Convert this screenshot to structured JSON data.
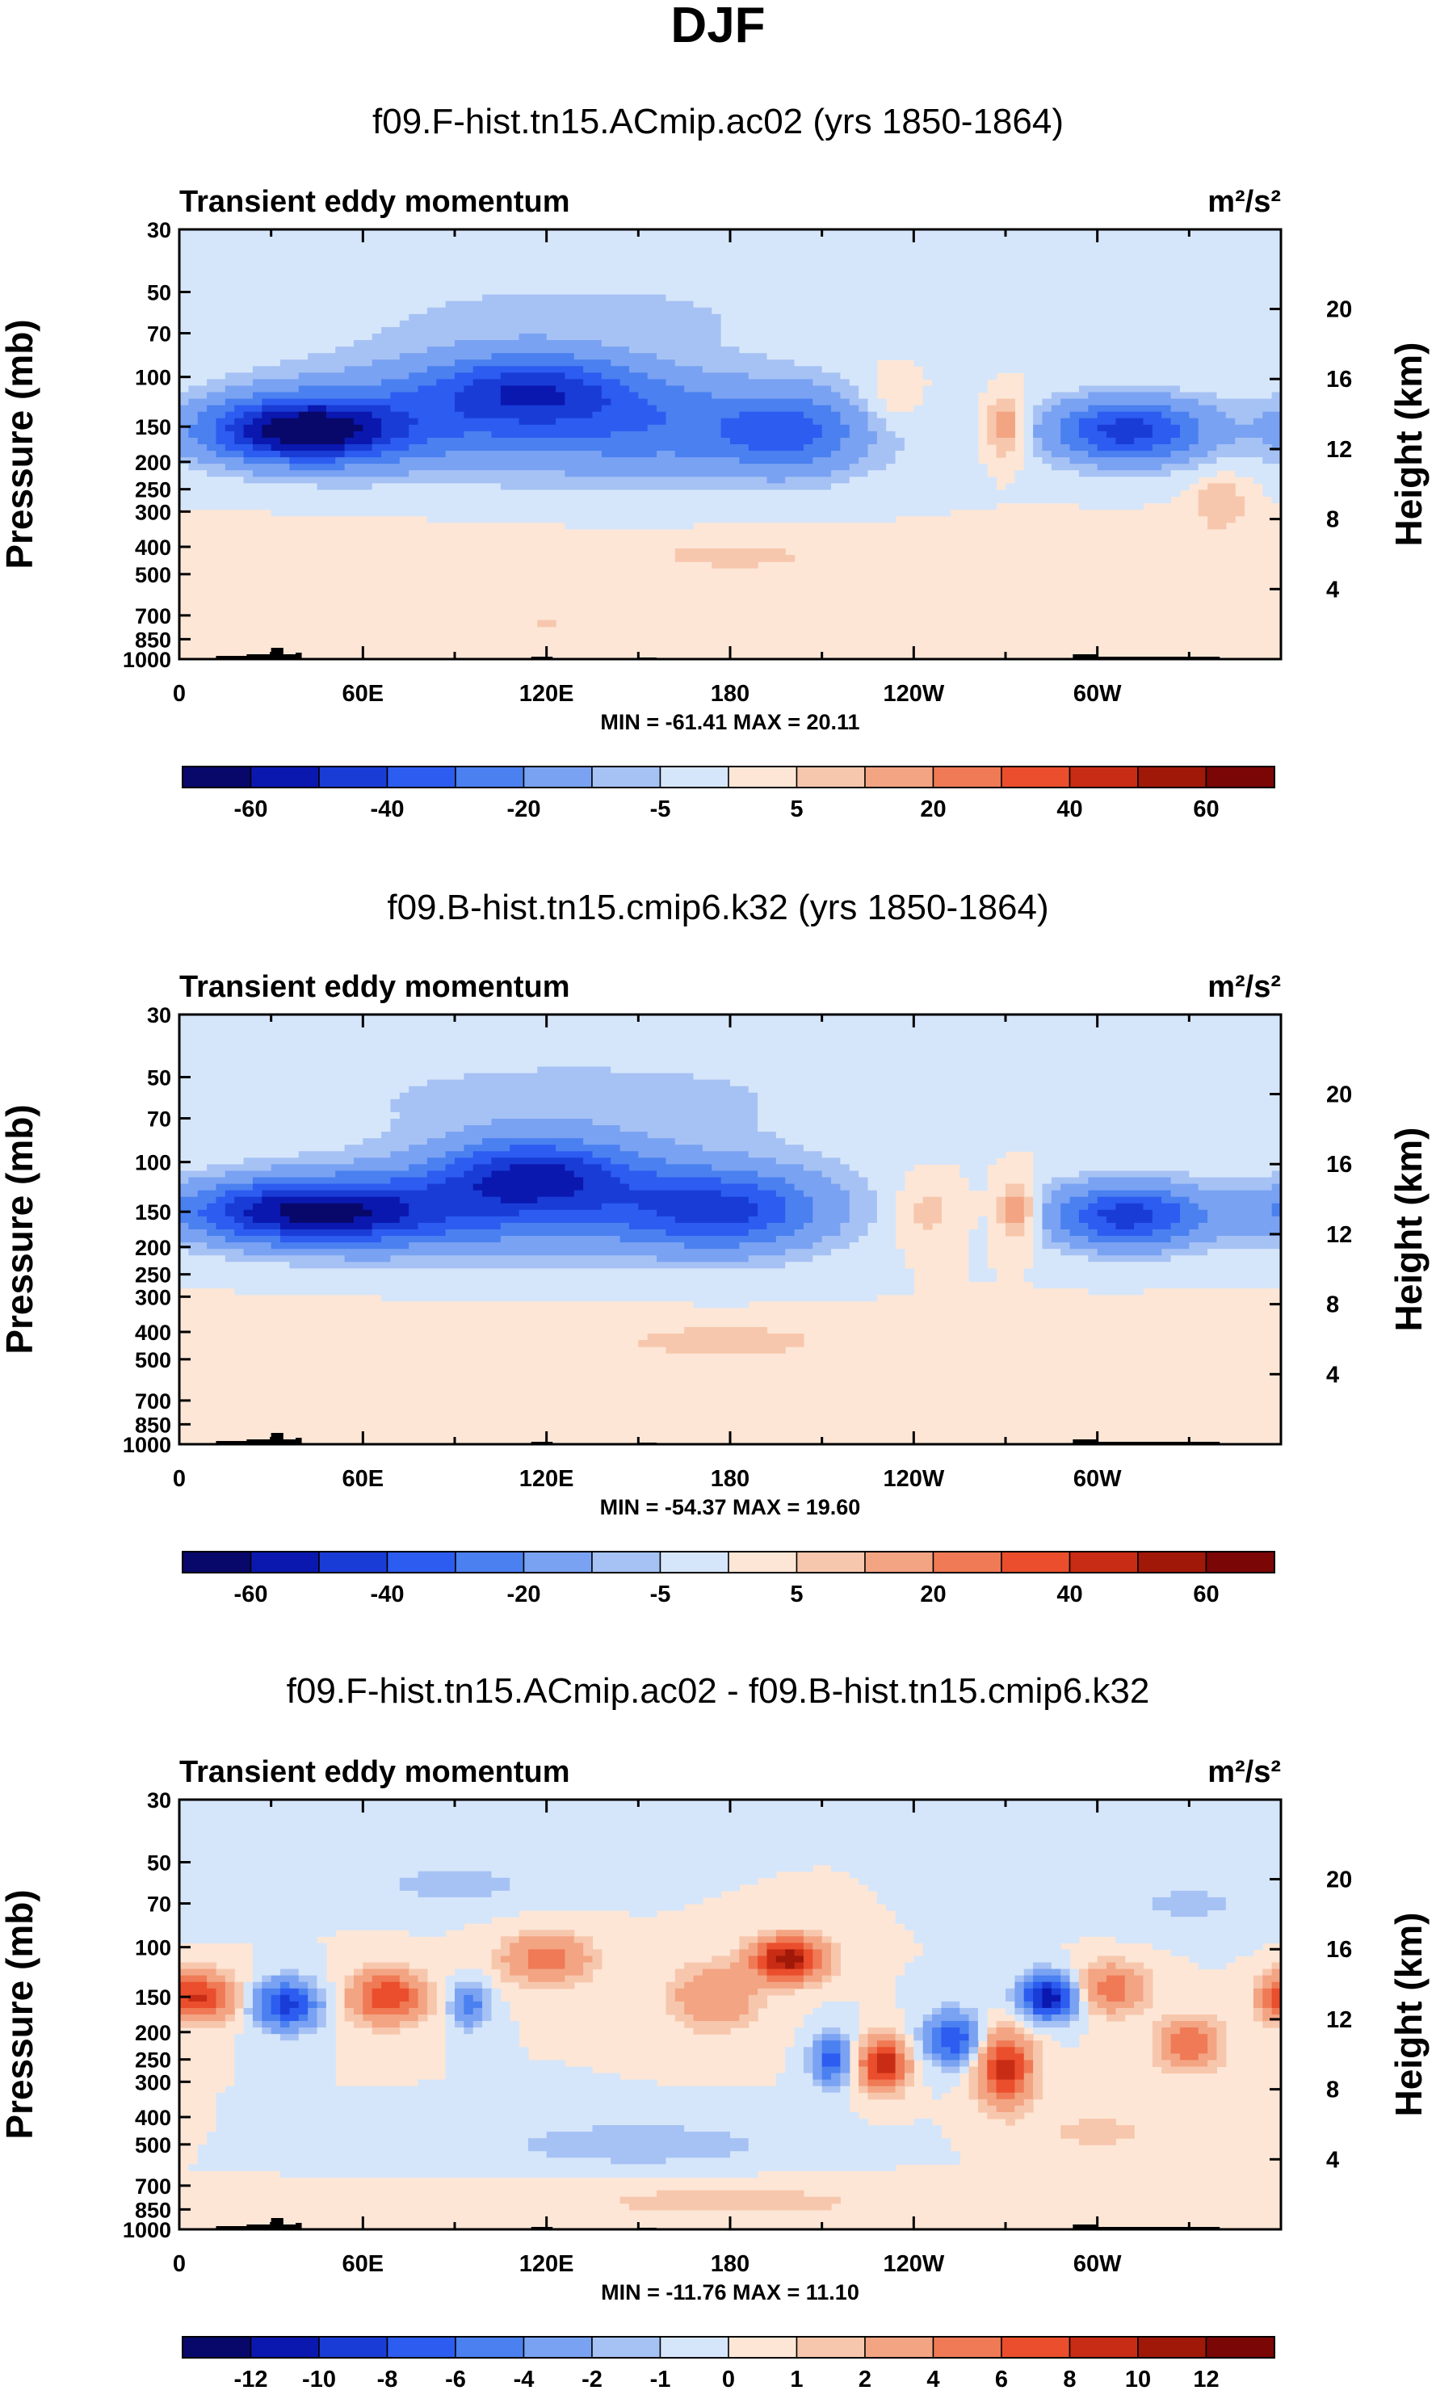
{
  "page_title": "DJF",
  "chart_data": [
    {
      "type": "heatmap",
      "title": "f09.F-hist.tn15.ACmip.ac02 (yrs 1850-1864)",
      "subtitle_left": "Transient eddy momentum",
      "units": "m²/s²",
      "ylabel": "Pressure (mb)",
      "y2label": "Height (km)",
      "x_ticks": [
        "0",
        "60E",
        "120E",
        "180",
        "120W",
        "60W"
      ],
      "x_tick_lon": [
        0,
        60,
        120,
        180,
        240,
        300
      ],
      "xlim": [
        0,
        360
      ],
      "y_ticks": [
        "30",
        "50",
        "70",
        "100",
        "150",
        "200",
        "250",
        "300",
        "400",
        "500",
        "700",
        "850",
        "1000"
      ],
      "y_tick_p": [
        30,
        50,
        70,
        100,
        150,
        200,
        250,
        300,
        400,
        500,
        700,
        850,
        1000
      ],
      "ylim": [
        1000,
        30
      ],
      "y2_ticks": [
        "20",
        "16",
        "12",
        "8",
        "4"
      ],
      "y2_tick_km": [
        20,
        16,
        12,
        8,
        4
      ],
      "stats": "MIN = -61.41  MAX =  20.11",
      "colorbar_labels": [
        "-60",
        "-40",
        "-20",
        "-5",
        "5",
        "20",
        "40",
        "60"
      ],
      "colorbar_levels": [
        -70,
        -60,
        -50,
        -40,
        -30,
        -20,
        -10,
        -5,
        0,
        5,
        10,
        20,
        30,
        40,
        50,
        60
      ],
      "scale": 60,
      "features": [
        {
          "lon": 40,
          "p": 155,
          "amp": -61.4,
          "slon": 22,
          "sz": 0.18
        },
        {
          "lon": 115,
          "p": 110,
          "amp": -35,
          "slon": 24,
          "sz": 0.2
        },
        {
          "lon": 160,
          "p": 150,
          "amp": -25,
          "slon": 45,
          "sz": 0.28
        },
        {
          "lon": 75,
          "p": 140,
          "amp": -18,
          "slon": 40,
          "sz": 0.3
        },
        {
          "lon": 200,
          "p": 160,
          "amp": -20,
          "slon": 15,
          "sz": 0.22
        },
        {
          "lon": 310,
          "p": 155,
          "amp": -45,
          "slon": 18,
          "sz": 0.18
        },
        {
          "lon": 270,
          "p": 150,
          "amp": 18,
          "slon": 5,
          "sz": 0.18
        },
        {
          "lon": 233,
          "p": 120,
          "amp": 8,
          "slon": 8,
          "sz": 0.2
        },
        {
          "lon": 340,
          "p": 280,
          "amp": 10,
          "slon": 6,
          "sz": 0.15
        },
        {
          "lon": 180,
          "p": 430,
          "amp": 6,
          "slon": 25,
          "sz": 0.1
        },
        {
          "lon": 120,
          "p": 750,
          "amp": 6,
          "slon": 5,
          "sz": 0.08
        },
        {
          "lon": 130,
          "p": 60,
          "amp": -6,
          "slon": 70,
          "sz": 0.3
        },
        {
          "lon": 40,
          "p": 450,
          "amp": 3,
          "slon": 60,
          "sz": 0.2
        },
        {
          "lon": 280,
          "p": 500,
          "amp": 3,
          "slon": 50,
          "sz": 0.2
        }
      ]
    },
    {
      "type": "heatmap",
      "title": "f09.B-hist.tn15.cmip6.k32 (yrs 1850-1864)",
      "subtitle_left": "Transient eddy momentum",
      "units": "m²/s²",
      "ylabel": "Pressure (mb)",
      "y2label": "Height (km)",
      "x_ticks": [
        "0",
        "60E",
        "120E",
        "180",
        "120W",
        "60W"
      ],
      "x_tick_lon": [
        0,
        60,
        120,
        180,
        240,
        300
      ],
      "xlim": [
        0,
        360
      ],
      "y_ticks": [
        "30",
        "50",
        "70",
        "100",
        "150",
        "200",
        "250",
        "300",
        "400",
        "500",
        "700",
        "850",
        "1000"
      ],
      "y_tick_p": [
        30,
        50,
        70,
        100,
        150,
        200,
        250,
        300,
        400,
        500,
        700,
        850,
        1000
      ],
      "ylim": [
        1000,
        30
      ],
      "y2_ticks": [
        "20",
        "16",
        "12",
        "8",
        "4"
      ],
      "y2_tick_km": [
        20,
        16,
        12,
        8,
        4
      ],
      "stats": "MIN = -54.37  MAX =  19.60",
      "colorbar_labels": [
        "-60",
        "-40",
        "-20",
        "-5",
        "5",
        "20",
        "40",
        "60"
      ],
      "colorbar_levels": [
        -70,
        -60,
        -50,
        -40,
        -30,
        -20,
        -10,
        -5,
        0,
        5,
        10,
        20,
        30,
        40,
        50,
        60
      ],
      "scale": 60,
      "features": [
        {
          "lon": 40,
          "p": 150,
          "amp": -54.4,
          "slon": 28,
          "sz": 0.18
        },
        {
          "lon": 115,
          "p": 110,
          "amp": -40,
          "slon": 22,
          "sz": 0.2
        },
        {
          "lon": 180,
          "p": 150,
          "amp": -28,
          "slon": 22,
          "sz": 0.22
        },
        {
          "lon": 150,
          "p": 140,
          "amp": -22,
          "slon": 40,
          "sz": 0.28
        },
        {
          "lon": 80,
          "p": 150,
          "amp": -20,
          "slon": 35,
          "sz": 0.25
        },
        {
          "lon": 310,
          "p": 155,
          "amp": -45,
          "slon": 18,
          "sz": 0.18
        },
        {
          "lon": 274,
          "p": 150,
          "amp": 18,
          "slon": 5,
          "sz": 0.18
        },
        {
          "lon": 244,
          "p": 150,
          "amp": 8,
          "slon": 8,
          "sz": 0.2
        },
        {
          "lon": 180,
          "p": 430,
          "amp": 7,
          "slon": 25,
          "sz": 0.1
        },
        {
          "lon": 130,
          "p": 60,
          "amp": -7,
          "slon": 70,
          "sz": 0.3
        },
        {
          "lon": 70,
          "p": 450,
          "amp": 3,
          "slon": 70,
          "sz": 0.2
        },
        {
          "lon": 300,
          "p": 500,
          "amp": 3,
          "slon": 50,
          "sz": 0.2
        }
      ]
    },
    {
      "type": "heatmap",
      "title": "f09.F-hist.tn15.ACmip.ac02 - f09.B-hist.tn15.cmip6.k32",
      "subtitle_left": "Transient eddy momentum",
      "units": "m²/s²",
      "ylabel": "Pressure (mb)",
      "y2label": "Height (km)",
      "x_ticks": [
        "0",
        "60E",
        "120E",
        "180",
        "120W",
        "60W"
      ],
      "x_tick_lon": [
        0,
        60,
        120,
        180,
        240,
        300
      ],
      "xlim": [
        0,
        360
      ],
      "y_ticks": [
        "30",
        "50",
        "70",
        "100",
        "150",
        "200",
        "250",
        "300",
        "400",
        "500",
        "700",
        "850",
        "1000"
      ],
      "y_tick_p": [
        30,
        50,
        70,
        100,
        150,
        200,
        250,
        300,
        400,
        500,
        700,
        850,
        1000
      ],
      "ylim": [
        1000,
        30
      ],
      "y2_ticks": [
        "20",
        "16",
        "12",
        "8",
        "4"
      ],
      "y2_tick_km": [
        20,
        16,
        12,
        8,
        4
      ],
      "stats": "MIN = -11.76  MAX =  11.10",
      "colorbar_labels": [
        "-12",
        "-10",
        "-8",
        "-6",
        "-4",
        "-2",
        "-1",
        "0",
        "1",
        "2",
        "4",
        "6",
        "8",
        "10",
        "12"
      ],
      "colorbar_levels": [
        -14,
        -12,
        -10,
        -8,
        -6,
        -4,
        -2,
        -1,
        0,
        1,
        2,
        4,
        6,
        8,
        10,
        12,
        14
      ],
      "scale": 12,
      "features": [
        {
          "lon": 8,
          "p": 150,
          "amp": 8,
          "slon": 7,
          "sz": 0.13
        },
        {
          "lon": 35,
          "p": 160,
          "amp": -9,
          "slon": 7,
          "sz": 0.13
        },
        {
          "lon": 68,
          "p": 150,
          "amp": 8,
          "slon": 8,
          "sz": 0.14
        },
        {
          "lon": 95,
          "p": 160,
          "amp": -5,
          "slon": 4,
          "sz": 0.12
        },
        {
          "lon": 120,
          "p": 110,
          "amp": 5,
          "slon": 10,
          "sz": 0.14
        },
        {
          "lon": 175,
          "p": 150,
          "amp": 4,
          "slon": 10,
          "sz": 0.18
        },
        {
          "lon": 199,
          "p": 110,
          "amp": 11.1,
          "slon": 8,
          "sz": 0.12
        },
        {
          "lon": 213,
          "p": 250,
          "amp": -7,
          "slon": 4,
          "sz": 0.14
        },
        {
          "lon": 230,
          "p": 260,
          "amp": 10,
          "slon": 5,
          "sz": 0.14
        },
        {
          "lon": 253,
          "p": 210,
          "amp": -8,
          "slon": 6,
          "sz": 0.14
        },
        {
          "lon": 270,
          "p": 270,
          "amp": 9,
          "slon": 6,
          "sz": 0.2
        },
        {
          "lon": 284,
          "p": 150,
          "amp": -11.76,
          "slon": 6,
          "sz": 0.12
        },
        {
          "lon": 305,
          "p": 140,
          "amp": 5,
          "slon": 8,
          "sz": 0.14
        },
        {
          "lon": 330,
          "p": 220,
          "amp": 6,
          "slon": 7,
          "sz": 0.14
        },
        {
          "lon": 358,
          "p": 150,
          "amp": 4,
          "slon": 4,
          "sz": 0.14
        },
        {
          "lon": 150,
          "p": 500,
          "amp": -2,
          "slon": 30,
          "sz": 0.12
        },
        {
          "lon": 180,
          "p": 800,
          "amp": 1.5,
          "slon": 40,
          "sz": 0.1
        },
        {
          "lon": 300,
          "p": 450,
          "amp": 1.5,
          "slon": 15,
          "sz": 0.1
        },
        {
          "lon": 90,
          "p": 60,
          "amp": -1.5,
          "slon": 20,
          "sz": 0.12
        },
        {
          "lon": 330,
          "p": 70,
          "amp": -1.2,
          "slon": 20,
          "sz": 0.15
        }
      ]
    }
  ],
  "palette": [
    "#08086b",
    "#0a18b0",
    "#1a3cd6",
    "#2c5cf0",
    "#4a80f0",
    "#7aa2f2",
    "#a6c2f4",
    "#d6e6fa",
    "#fde6d6",
    "#f7c7ad",
    "#f3a483",
    "#ef7a55",
    "#ea4e2c",
    "#c82c14",
    "#a01808",
    "#7a0606"
  ],
  "palette_diff": [
    "#08086b",
    "#0a18b0",
    "#1a3cd6",
    "#2c5cf0",
    "#4a80f0",
    "#7aa2f2",
    "#a6c2f4",
    "#d6e6fa",
    "#fde6d6",
    "#f7c7ad",
    "#f3a483",
    "#ef7a55",
    "#ea4e2c",
    "#c82c14",
    "#a01808",
    "#7a0606"
  ]
}
